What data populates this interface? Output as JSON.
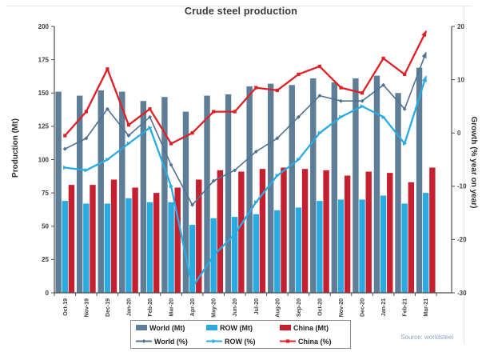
{
  "chart_data": {
    "type": "combo-bar-line",
    "title": "Crude steel production",
    "categories": [
      "Oct-19",
      "Nov-19",
      "Dec-19",
      "Jan-20",
      "Feb-20",
      "Mar-20",
      "Apr-20",
      "May-20",
      "Jun-20",
      "Jul-20",
      "Aug-20",
      "Sep-20",
      "Oct-20",
      "Nov-20",
      "Dec-20",
      "Jan-21",
      "Feb-21",
      "Mar-21"
    ],
    "bar_series": [
      {
        "name": "World (Mt)",
        "axis": "left",
        "color": "#5e7d97",
        "values": [
          151,
          148,
          152,
          151,
          144,
          147,
          136,
          148,
          149,
          155,
          157,
          156,
          161,
          158,
          161,
          163,
          150,
          169
        ]
      },
      {
        "name": "ROW (Mt)",
        "axis": "left",
        "color": "#29abe2",
        "values": [
          69,
          67,
          67,
          71,
          68,
          68,
          51,
          56,
          57,
          59,
          62,
          64,
          69,
          70,
          70,
          73,
          67,
          75
        ]
      },
      {
        "name": "China (Mt)",
        "axis": "left",
        "color": "#c5202f",
        "values": [
          81,
          81,
          85,
          79,
          75,
          79,
          85,
          92,
          91,
          93,
          94,
          93,
          92,
          88,
          91,
          90,
          83,
          94
        ]
      }
    ],
    "line_series": [
      {
        "name": "World (%)",
        "axis": "right",
        "color": "#4f7293",
        "marker": "diamond",
        "values": [
          -3,
          -1,
          4.5,
          -0.5,
          3,
          -6,
          -13.5,
          -9,
          -7,
          -3.5,
          -1,
          3,
          7,
          6,
          6,
          9,
          4.5,
          15
        ]
      },
      {
        "name": "ROW (%)",
        "axis": "right",
        "color": "#29abe2",
        "marker": "triangle",
        "values": [
          -6.5,
          -7,
          -5,
          -2,
          1,
          -10,
          -29,
          -23,
          -19,
          -13,
          -8,
          -5,
          0,
          3,
          5,
          3,
          -2,
          10.5
        ]
      },
      {
        "name": "China (%)",
        "axis": "right",
        "color": "#e01f26",
        "marker": "square",
        "values": [
          -0.5,
          4,
          12,
          1.5,
          4.5,
          -2,
          0,
          4,
          4,
          8.5,
          8,
          11,
          12.5,
          8.5,
          7.5,
          14,
          11,
          19
        ]
      }
    ],
    "left_axis": {
      "title": "Production (Mt)",
      "min": 0,
      "max": 200,
      "ticks": [
        "0",
        "25",
        "50",
        "75",
        "100",
        "125",
        "150",
        "175",
        "200"
      ]
    },
    "right_axis": {
      "title": "Growth (% year on year)",
      "min": -30,
      "max": 20,
      "ticks": [
        "-30",
        "-20",
        "-10",
        "0",
        "10",
        "20"
      ]
    },
    "legend_position": "bottom",
    "gridlines": false,
    "source": "Source: worldsteel"
  }
}
